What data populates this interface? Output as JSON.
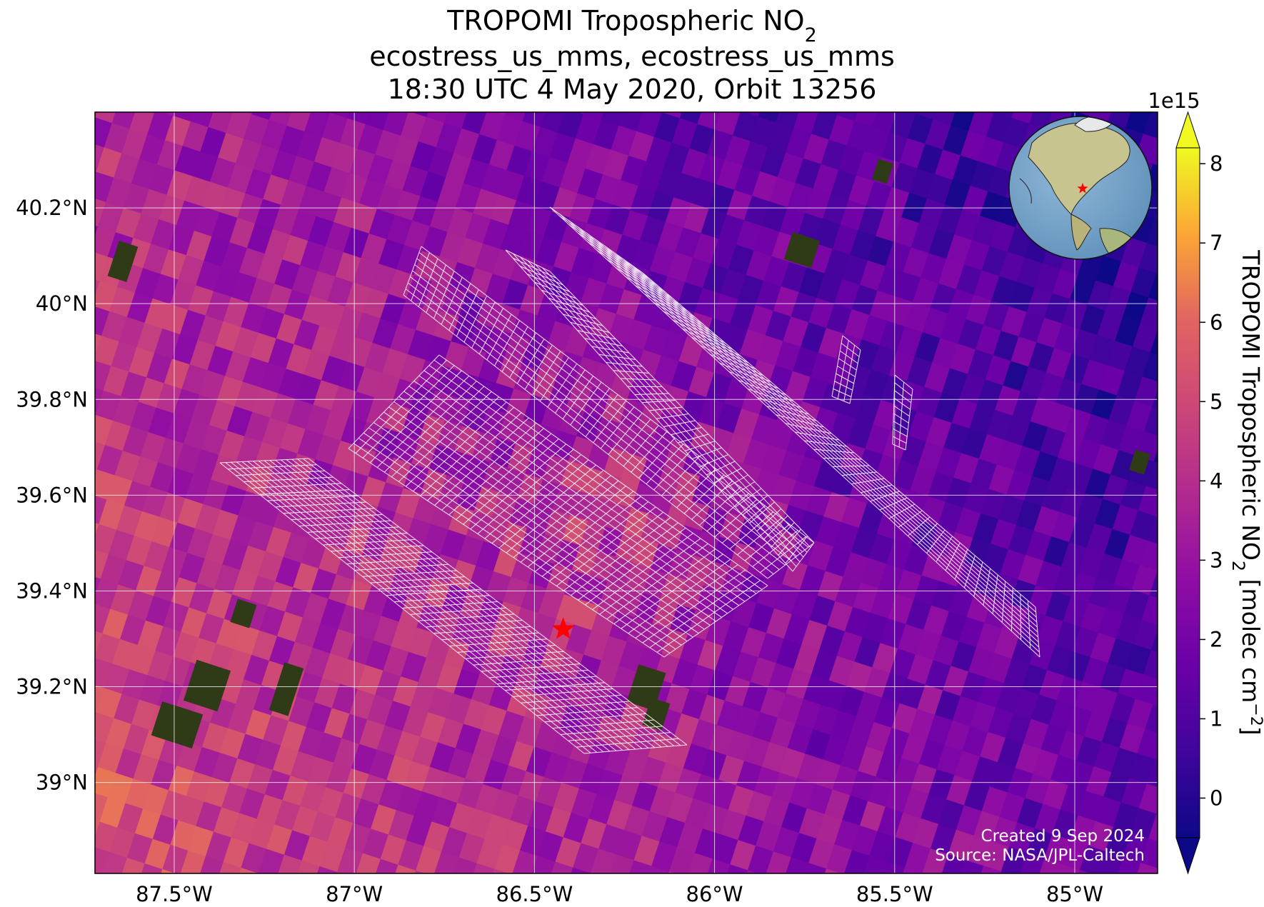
{
  "figure": {
    "title": {
      "line1_prefix": "TROPOMI Tropospheric NO",
      "line1_subscript": "2",
      "line2": "ecostress_us_mms, ecostress_us_mms",
      "line3": "18:30 UTC 4 May 2020, Orbit 13256"
    },
    "credits": {
      "created": "Created 9 Sep 2024",
      "source": "Source: NASA/JPL-Caltech"
    }
  },
  "map": {
    "lon_range": [
      -87.72,
      -84.77
    ],
    "lat_range": [
      38.81,
      40.4
    ],
    "lon_ticks": [
      -87.5,
      -87.0,
      -86.5,
      -86.0,
      -85.5,
      -85.0
    ],
    "lon_tick_labels": [
      "87.5°W",
      "87°W",
      "86.5°W",
      "86°W",
      "85.5°W",
      "85°W"
    ],
    "lat_ticks": [
      39.0,
      39.2,
      39.4,
      39.6,
      39.8,
      40.0,
      40.2
    ],
    "lat_tick_labels": [
      "39°N",
      "39.2°N",
      "39.4°N",
      "39.6°N",
      "39.8°N",
      "40°N",
      "40.2°N"
    ],
    "gridlines": true,
    "site_marker": {
      "lon": -86.42,
      "lat": 39.32,
      "color": "#ff0000",
      "icon": "star-icon"
    },
    "inset_globe": {
      "icon": "globe-icon",
      "marker_color": "#ff0000"
    },
    "colors": {
      "gridline": "#ffffff",
      "footprint_outline": "#ffffff",
      "no_data_land": "#2f3a17"
    }
  },
  "colorbar": {
    "exponent_label": "1e15",
    "label_prefix": "TROPOMI Tropospheric NO",
    "label_subscript": "2",
    "label_suffix": " [molec cm",
    "label_superscript": "−2",
    "label_end": "]",
    "vmin": -0.5,
    "vmax": 8.2,
    "ticks": [
      0,
      1,
      2,
      3,
      4,
      5,
      6,
      7,
      8
    ],
    "tick_labels": [
      "0",
      "1",
      "2",
      "3",
      "4",
      "5",
      "6",
      "7",
      "8"
    ],
    "colormap": "plasma",
    "extend": "both"
  }
}
